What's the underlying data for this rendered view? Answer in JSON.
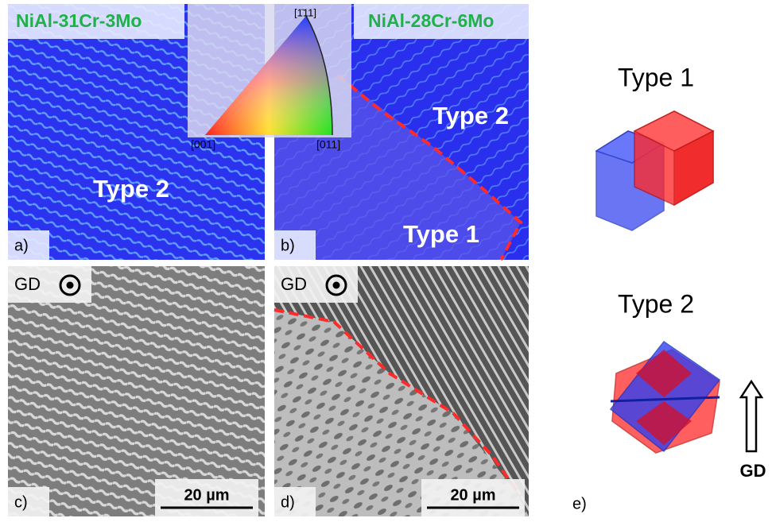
{
  "panels": [
    {
      "label": "a)",
      "title": "NiAl-31Cr-3Mo",
      "annotations": [
        "Type 2"
      ]
    },
    {
      "label": "b)",
      "title": "NiAl-28Cr-6Mo",
      "annotations": [
        "Type 2",
        "Type 1"
      ],
      "color_key": {
        "top": "[1̄11]",
        "left": "[001]",
        "right": "[011]"
      }
    },
    {
      "label": "c)",
      "direction": "GD",
      "scale_bar": "20 µm"
    },
    {
      "label": "d)",
      "direction": "GD",
      "scale_bar": "20 µm"
    },
    {
      "label": "e)",
      "types": [
        "Type 1",
        "Type 2"
      ],
      "arrow": "GD"
    }
  ]
}
